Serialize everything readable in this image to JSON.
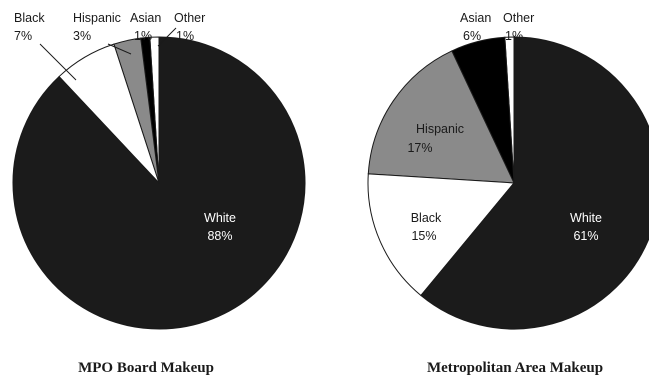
{
  "chart_data": [
    {
      "type": "pie",
      "title": "MPO Board Makeup",
      "slices": [
        {
          "label": "White",
          "value": 88,
          "display": "88%",
          "color": "#1b1b1b"
        },
        {
          "label": "Black",
          "value": 7,
          "display": "7%",
          "color": "#ffffff"
        },
        {
          "label": "Hispanic",
          "value": 3,
          "display": "3%",
          "color": "#8a8a8a"
        },
        {
          "label": "Asian",
          "value": 1,
          "display": "1%",
          "color": "#000000"
        },
        {
          "label": "Other",
          "value": 1,
          "display": "1%",
          "color": "#ffffff"
        }
      ]
    },
    {
      "type": "pie",
      "title": "Metropolitan Area Makeup",
      "slices": [
        {
          "label": "White",
          "value": 61,
          "display": "61%",
          "color": "#1b1b1b"
        },
        {
          "label": "Black",
          "value": 15,
          "display": "15%",
          "color": "#ffffff"
        },
        {
          "label": "Hispanic",
          "value": 17,
          "display": "17%",
          "color": "#8a8a8a"
        },
        {
          "label": "Asian",
          "value": 6,
          "display": "6%",
          "color": "#000000"
        },
        {
          "label": "Other",
          "value": 1,
          "display": "1%",
          "color": "#ffffff"
        }
      ]
    }
  ]
}
